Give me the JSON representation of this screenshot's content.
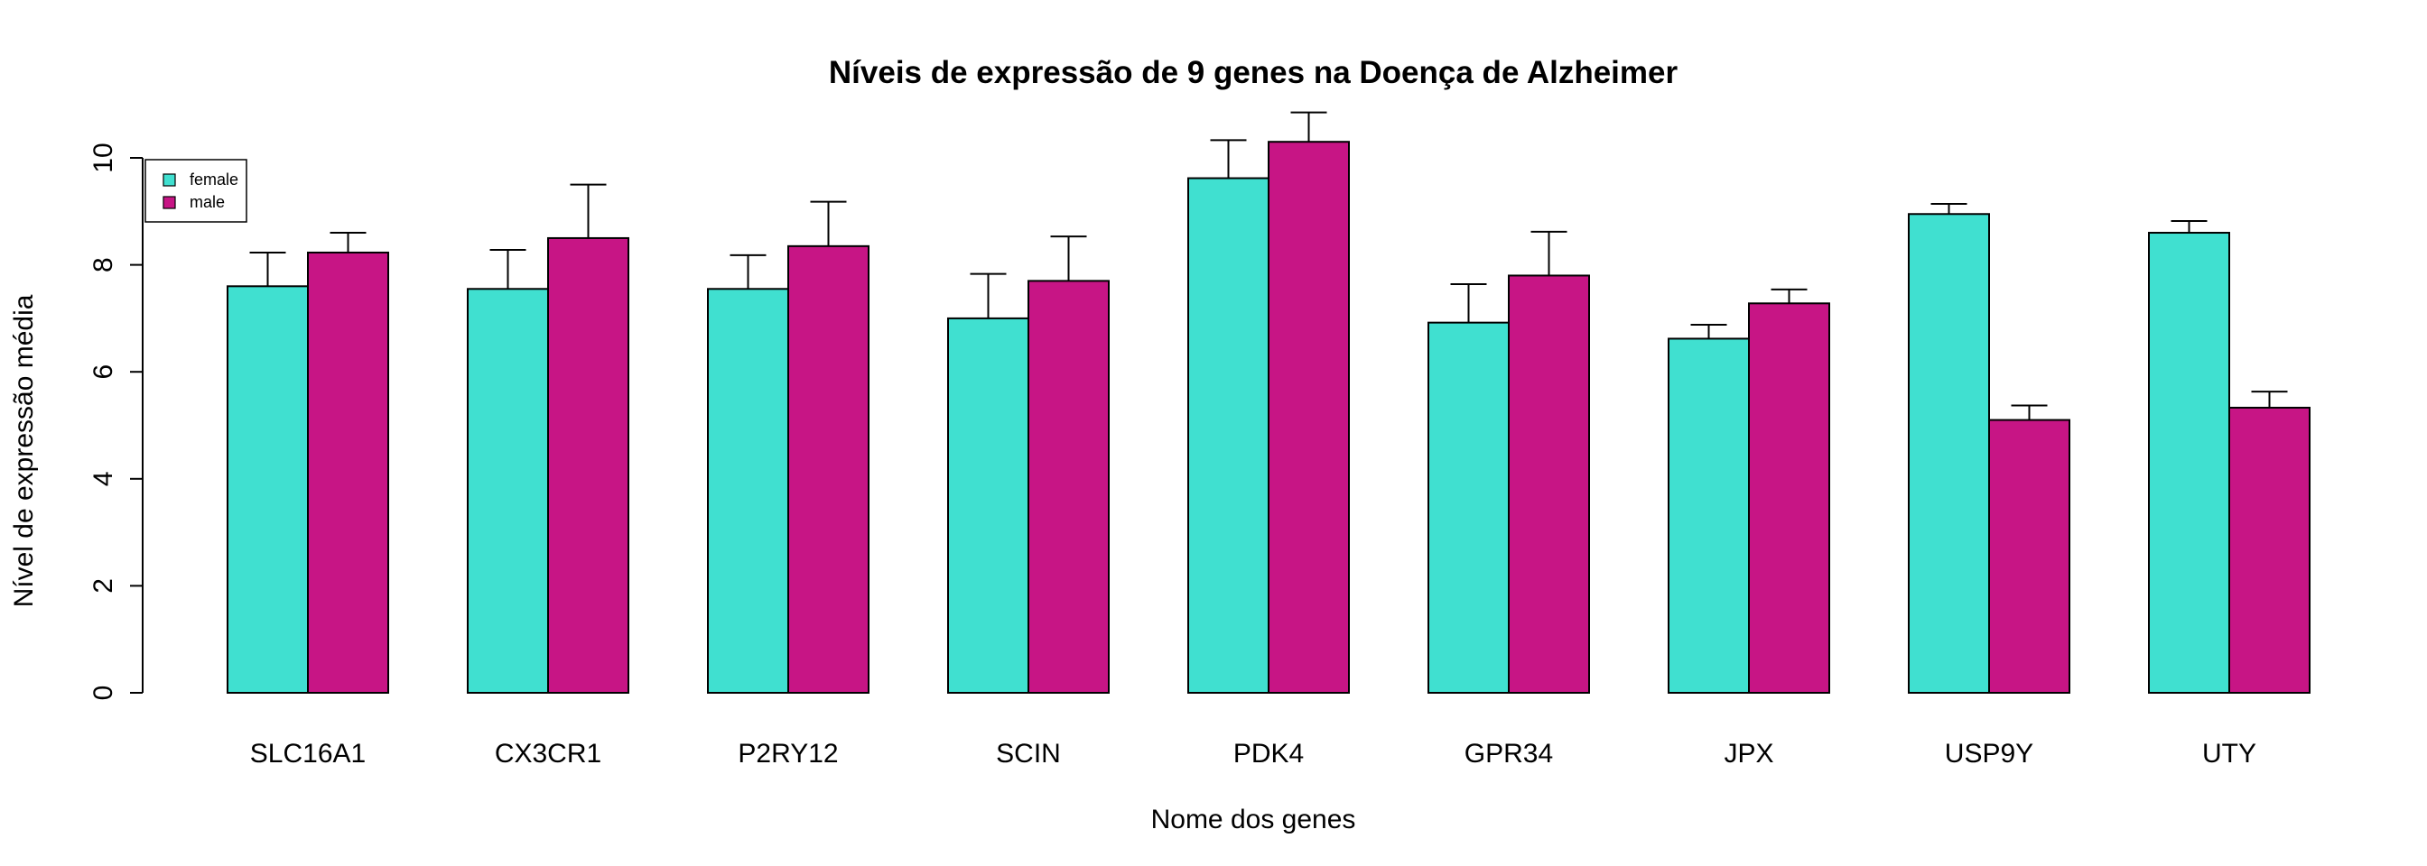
{
  "chart_data": {
    "type": "bar",
    "title": "Níveis de expressão de 9 genes na Doença de Alzheimer",
    "xlabel": "Nome dos genes",
    "ylabel": "Nível de expressão média",
    "ylim": [
      0,
      11
    ],
    "yticks": [
      "0",
      "2",
      "4",
      "6",
      "8",
      "10"
    ],
    "categories": [
      "SLC16A1",
      "CX3CR1",
      "P2RY12",
      "SCIN",
      "PDK4",
      "GPR34",
      "JPX",
      "USP9Y",
      "UTY"
    ],
    "series": [
      {
        "name": "female",
        "color": "#40E0D0",
        "values": [
          7.6,
          7.55,
          7.55,
          7.0,
          9.62,
          6.92,
          6.62,
          8.95,
          8.6
        ],
        "error_upper": [
          8.23,
          8.28,
          8.18,
          7.83,
          10.33,
          7.64,
          6.88,
          9.14,
          8.82
        ]
      },
      {
        "name": "male",
        "color": "#C71585",
        "values": [
          8.23,
          8.5,
          8.35,
          7.7,
          10.3,
          7.8,
          7.28,
          5.1,
          5.33
        ],
        "error_upper": [
          8.6,
          9.5,
          9.18,
          8.53,
          10.85,
          8.62,
          7.54,
          5.37,
          5.63
        ]
      }
    ],
    "legend_position": "top-left",
    "grid": false
  }
}
